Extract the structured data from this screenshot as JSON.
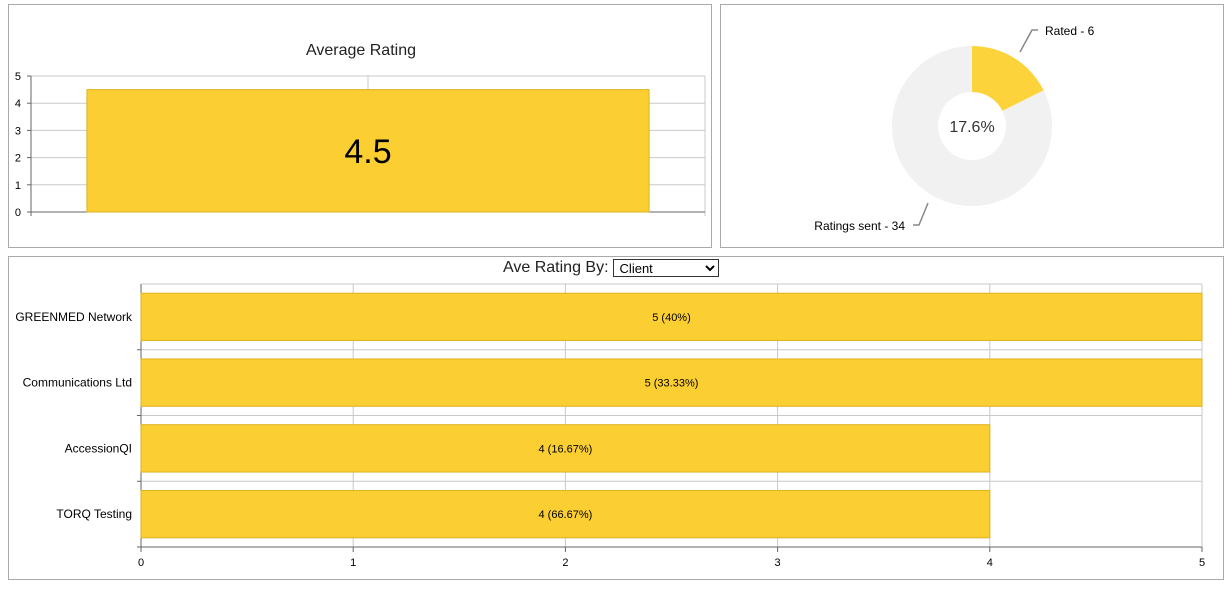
{
  "colors": {
    "bar": "#FBCE31",
    "bar_stroke": "#DDB21F",
    "grid": "#C8C8C8",
    "axis": "#666666",
    "donut_bg": "#F1F1F1",
    "donut_fill": "#FCD33A"
  },
  "controls": {
    "ave_rating_by_label": "Ave Rating By:",
    "ave_rating_by_value": "Client"
  },
  "chart_data": [
    {
      "type": "bar",
      "title": "Average Rating",
      "categories": [
        ""
      ],
      "values": [
        4.5
      ],
      "value_labels": [
        "4.5"
      ],
      "ylim": [
        0,
        5
      ],
      "yticks": [
        "0",
        "1",
        "2",
        "3",
        "4",
        "5"
      ],
      "grid": true
    },
    {
      "type": "pie",
      "style": "donut",
      "center_label": "17.6%",
      "slices": [
        {
          "label": "Rated - 6",
          "value": 6
        },
        {
          "label": "Ratings sent - 34",
          "value": 28
        }
      ]
    },
    {
      "type": "bar",
      "orientation": "horizontal",
      "categories": [
        "GREENMED Network",
        "Communications Ltd",
        "AccessionQI",
        "TORQ Testing"
      ],
      "values": [
        5,
        5,
        4,
        4
      ],
      "value_labels": [
        "5 (40%)",
        "5 (33.33%)",
        "4 (16.67%)",
        "4 (66.67%)"
      ],
      "xlim": [
        0,
        5
      ],
      "xticks": [
        "0",
        "1",
        "2",
        "3",
        "4",
        "5"
      ],
      "grid": true
    }
  ]
}
